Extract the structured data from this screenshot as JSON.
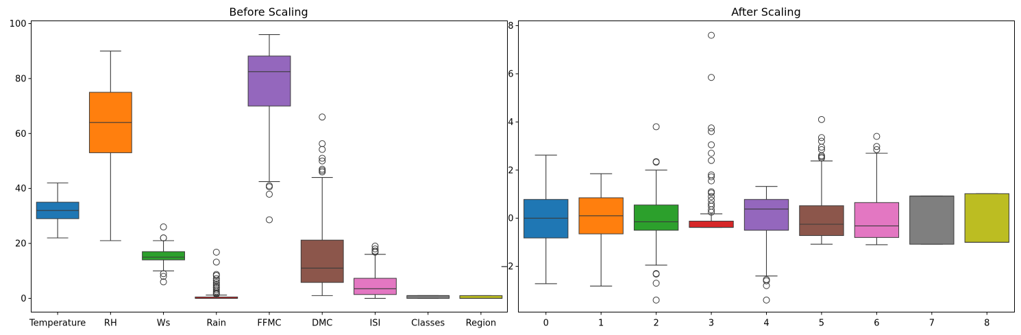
{
  "chart_data": [
    {
      "type": "box",
      "title": "Before Scaling",
      "xlabel": "",
      "ylabel": "",
      "ylim": [
        -5,
        101
      ],
      "yticks": [
        0,
        20,
        40,
        60,
        80,
        100
      ],
      "categories": [
        "Temperature",
        "RH",
        "Ws",
        "Rain",
        "FFMC",
        "DMC",
        "ISI",
        "Classes",
        "Region"
      ],
      "boxes": [
        {
          "label": "Temperature",
          "color": "#1f77b4",
          "whislo": 22,
          "q1": 29,
          "med": 32,
          "q3": 35,
          "whishi": 42,
          "fliers": []
        },
        {
          "label": "RH",
          "color": "#ff7f0e",
          "whislo": 21,
          "q1": 53,
          "med": 64,
          "q3": 75,
          "whishi": 90,
          "fliers": []
        },
        {
          "label": "Ws",
          "color": "#2ca02c",
          "whislo": 10,
          "q1": 14,
          "med": 15,
          "q3": 17,
          "whishi": 21,
          "fliers": [
            26,
            22,
            22,
            9,
            8,
            6
          ]
        },
        {
          "label": "Rain",
          "color": "#d62728",
          "whislo": 0,
          "q1": 0,
          "med": 0,
          "q3": 0.5,
          "whishi": 1.2,
          "fliers": [
            16.8,
            13.2,
            8.7,
            8.3,
            7.2,
            6.5,
            5.8,
            5.2,
            4.7,
            4.1,
            3.8,
            3.1,
            2.5,
            2.0,
            1.8,
            1.5
          ]
        },
        {
          "label": "FFMC",
          "color": "#9467bd",
          "whislo": 42.5,
          "q1": 70,
          "med": 82.5,
          "q3": 88.2,
          "whishi": 96,
          "fliers": [
            41,
            40.6,
            37.9,
            28.6
          ]
        },
        {
          "label": "DMC",
          "color": "#8c564b",
          "whislo": 1,
          "q1": 5.8,
          "med": 11,
          "q3": 21.2,
          "whishi": 44,
          "fliers": [
            66,
            56.3,
            54.2,
            51,
            50,
            47,
            46.5,
            46
          ]
        },
        {
          "label": "ISI",
          "color": "#e377c2",
          "whislo": 0,
          "q1": 1.4,
          "med": 3.5,
          "q3": 7.3,
          "whishi": 16,
          "fliers": [
            19,
            18,
            17.2,
            16.8
          ]
        },
        {
          "label": "Classes",
          "color": "#7f7f7f",
          "whislo": 0,
          "q1": 0,
          "med": 1,
          "q3": 1,
          "whishi": 1,
          "fliers": []
        },
        {
          "label": "Region",
          "color": "#bcbd22",
          "whislo": 0,
          "q1": 0,
          "med": 0,
          "q3": 1,
          "whishi": 1,
          "fliers": []
        }
      ]
    },
    {
      "type": "box",
      "title": "After Scaling",
      "xlabel": "",
      "ylabel": "",
      "ylim": [
        -3.9,
        8.2
      ],
      "yticks": [
        -2,
        0,
        2,
        4,
        6,
        8
      ],
      "ytick_labels": [
        "−2",
        "0",
        "2",
        "4",
        "6",
        "8"
      ],
      "categories": [
        "0",
        "1",
        "2",
        "3",
        "4",
        "5",
        "6",
        "7",
        "8"
      ],
      "boxes": [
        {
          "label": "0",
          "color": "#1f77b4",
          "whislo": -2.72,
          "q1": -0.82,
          "med": 0,
          "q3": 0.78,
          "whishi": 2.62,
          "fliers": []
        },
        {
          "label": "1",
          "color": "#ff7f0e",
          "whislo": -2.82,
          "q1": -0.65,
          "med": 0.1,
          "q3": 0.85,
          "whishi": 1.85,
          "fliers": []
        },
        {
          "label": "2",
          "color": "#2ca02c",
          "whislo": -1.95,
          "q1": -0.5,
          "med": -0.15,
          "q3": 0.55,
          "whishi": 2.0,
          "fliers": [
            3.8,
            2.35,
            2.33,
            -2.3,
            -2.32,
            -2.7,
            -3.4
          ]
        },
        {
          "label": "3",
          "color": "#d62728",
          "whislo": -0.38,
          "q1": -0.38,
          "med": -0.38,
          "q3": -0.12,
          "whishi": 0.18,
          "fliers": [
            7.6,
            5.85,
            3.75,
            3.6,
            3.05,
            2.7,
            2.4,
            1.8,
            1.72,
            1.55,
            1.1,
            1.05,
            0.9,
            0.75,
            0.6,
            0.5,
            0.35,
            0.25
          ]
        },
        {
          "label": "4",
          "color": "#9467bd",
          "whislo": -2.4,
          "q1": -0.5,
          "med": 0.38,
          "q3": 0.78,
          "whishi": 1.32,
          "fliers": [
            -2.55,
            -2.6,
            -2.8,
            -3.4
          ]
        },
        {
          "label": "5",
          "color": "#8c564b",
          "whislo": -1.08,
          "q1": -0.72,
          "med": -0.25,
          "q3": 0.52,
          "whishi": 2.38,
          "fliers": [
            4.1,
            3.35,
            3.2,
            2.95,
            2.85,
            2.6,
            2.55,
            2.5
          ]
        },
        {
          "label": "6",
          "color": "#e377c2",
          "whislo": -1.1,
          "q1": -0.8,
          "med": -0.32,
          "q3": 0.65,
          "whishi": 2.7,
          "fliers": [
            3.4,
            2.98,
            2.85
          ]
        },
        {
          "label": "7",
          "color": "#7f7f7f",
          "whislo": -1.08,
          "q1": -1.08,
          "med": 0.92,
          "q3": 0.92,
          "whishi": 0.92,
          "fliers": []
        },
        {
          "label": "8",
          "color": "#bcbd22",
          "whislo": -1.0,
          "q1": -1.0,
          "med": -1.0,
          "q3": 1.02,
          "whishi": 1.02,
          "fliers": []
        }
      ]
    }
  ]
}
